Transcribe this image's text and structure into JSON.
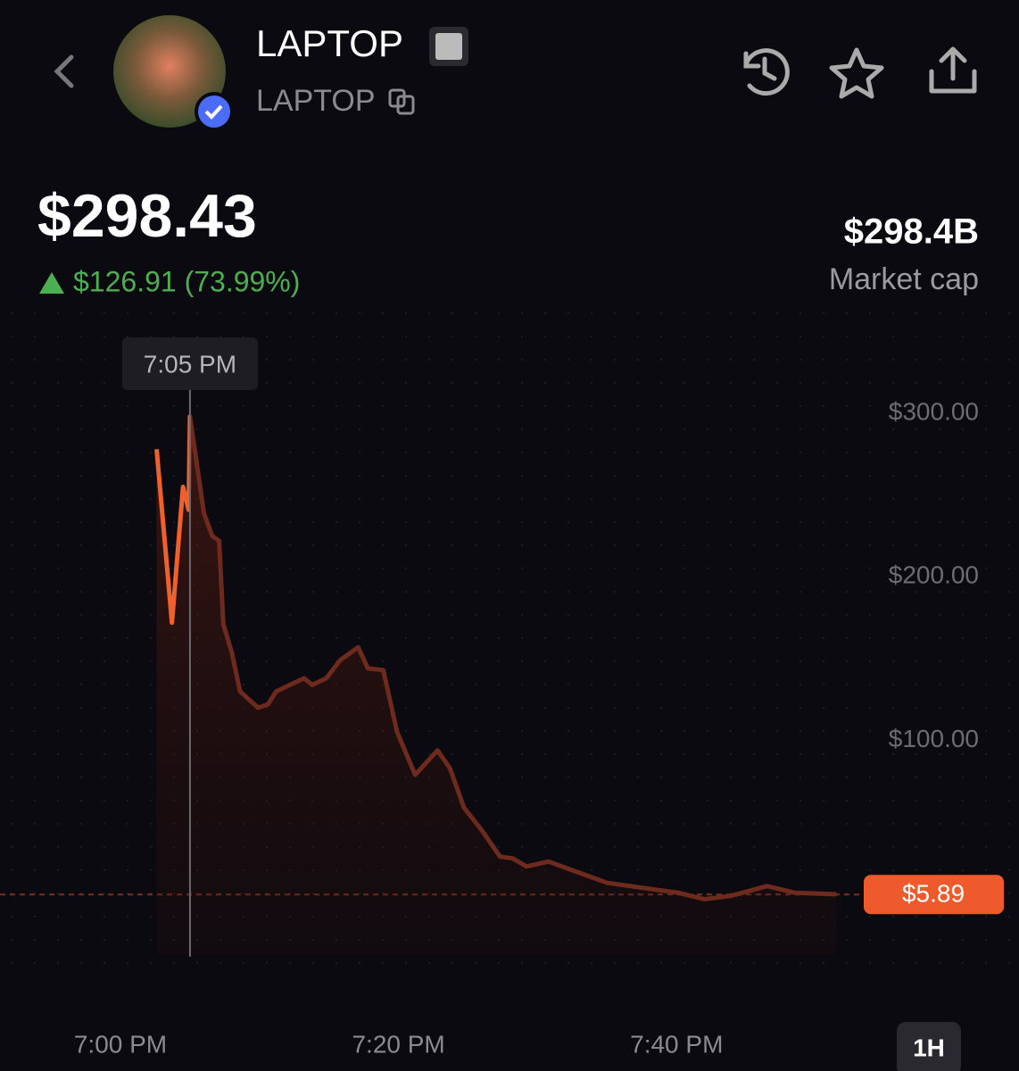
{
  "header": {
    "name": "LAPTOP",
    "ticker": "LAPTOP"
  },
  "price": "$298.43",
  "change": "$126.91 (73.99%)",
  "market_cap": "$298.4B",
  "market_cap_label": "Market cap",
  "timeframe": "1H",
  "chart_data": {
    "type": "line",
    "x": [
      2.6,
      3.7,
      4.5,
      4.9,
      5,
      6.0,
      6.6,
      7.1,
      7.4,
      8.0,
      8.6,
      9.9,
      10.6,
      11.2,
      12.2,
      13.2,
      13.8,
      14.8,
      15.8,
      17.1,
      17.8,
      18.9,
      19.9,
      21.2,
      22.8,
      23.7,
      24.7,
      26.0,
      27.3,
      28.2,
      29.2,
      30.8,
      32.4,
      35.0,
      37.5,
      40.1,
      42.0,
      43.9,
      46.5,
      48.5,
      51.5
    ],
    "series": [
      {
        "color": "#f0602a",
        "values": [
          278,
          172,
          255,
          241,
          298,
          239,
          225,
          222,
          171,
          154,
          130,
          120,
          122,
          130,
          134,
          138,
          134,
          138,
          149,
          157,
          144,
          143,
          105,
          79,
          94,
          83,
          59,
          45,
          29,
          28,
          23,
          26,
          21,
          13,
          10,
          7,
          3,
          5,
          11,
          7,
          6
        ]
      }
    ],
    "xlim": [
      0,
      55
    ],
    "xticks": [
      {
        "value": 0,
        "label": "7:00 PM"
      },
      {
        "value": 20,
        "label": "7:20 PM"
      },
      {
        "value": 40,
        "label": "7:40 PM"
      }
    ],
    "ylim": [
      0,
      300
    ],
    "yticks": [
      {
        "value": 100,
        "label": "$100.00"
      },
      {
        "value": 200,
        "label": "$200.00"
      },
      {
        "value": 300,
        "label": "$300.00"
      }
    ],
    "cursor": {
      "value": 5,
      "label": "7:05 PM"
    },
    "last_price": {
      "value": 5.89,
      "label": "$5.89"
    }
  }
}
